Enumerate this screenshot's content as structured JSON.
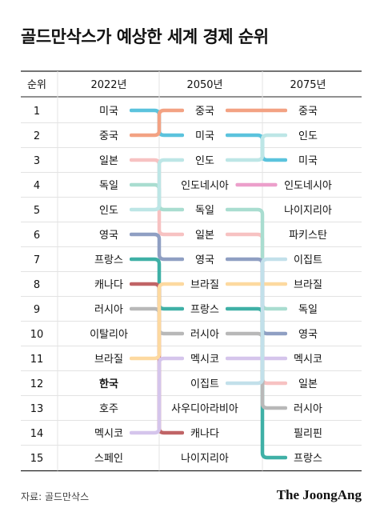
{
  "title": "골드만삭스가 예상한 세계 경제 순위",
  "source": "자료: 골드만삭스",
  "brand": "The JoongAng",
  "chart_data": {
    "type": "table",
    "title": "골드만삭스가 예상한 세계 경제 순위",
    "headers": [
      "순위",
      "2022년",
      "2050년",
      "2075년"
    ],
    "ranks": [
      "1",
      "2",
      "3",
      "4",
      "5",
      "6",
      "7",
      "8",
      "9",
      "10",
      "11",
      "12",
      "13",
      "14",
      "15"
    ],
    "columns": [
      [
        "미국",
        "중국",
        "일본",
        "독일",
        "인도",
        "영국",
        "프랑스",
        "캐나다",
        "러시아",
        "이탈리아",
        "브라질",
        "한국",
        "호주",
        "멕시코",
        "스페인"
      ],
      [
        "중국",
        "미국",
        "인도",
        "인도네시아",
        "독일",
        "일본",
        "영국",
        "브라질",
        "프랑스",
        "러시아",
        "멕시코",
        "이집트",
        "사우디아라비아",
        "캐나다",
        "나이지리아"
      ],
      [
        "중국",
        "인도",
        "미국",
        "인도네시아",
        "나이지리아",
        "파키스탄",
        "이집트",
        "브라질",
        "독일",
        "영국",
        "멕시코",
        "일본",
        "러시아",
        "필리핀",
        "프랑스"
      ]
    ],
    "highlight": "한국",
    "country_colors": {
      "미국": "#5bc3dd",
      "중국": "#f3a283",
      "일본": "#f7c2c2",
      "독일": "#a9ddd0",
      "인도": "#bde6e6",
      "영국": "#8f9fc3",
      "프랑스": "#3fb0a6",
      "캐나다": "#c06466",
      "러시아": "#b8b8b8",
      "브라질": "#fdd9a0",
      "멕시코": "#d5c5ec",
      "인도네시아": "#ec9fcb",
      "이집트": "#c2e0ea"
    }
  }
}
